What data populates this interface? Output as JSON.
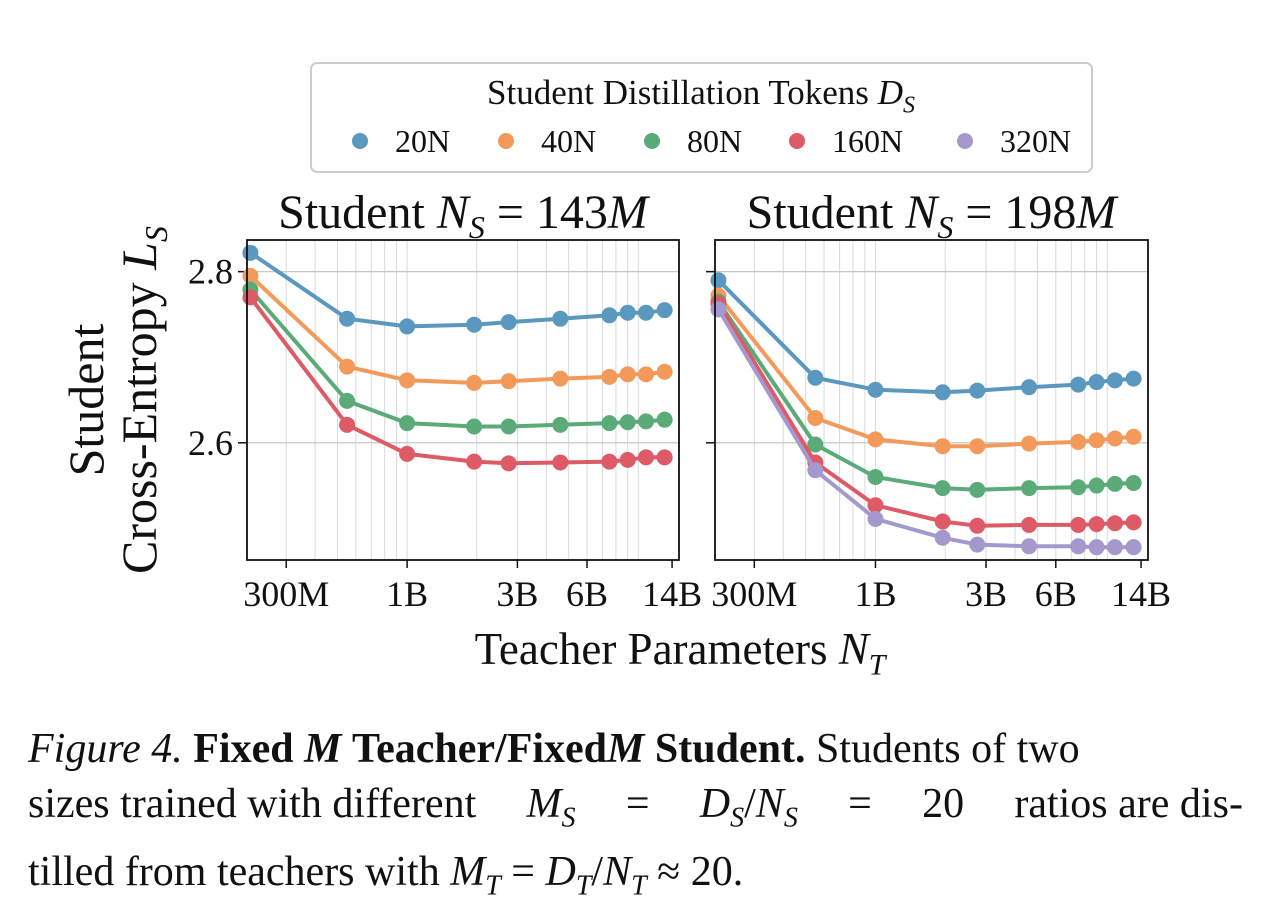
{
  "chart_data": {
    "type": "line",
    "shared": {
      "xlabel": "Teacher Parameters",
      "xlabel_symbol": "N",
      "xlabel_sub": "T",
      "ylabel_line1": "Student",
      "ylabel_line2": "Cross-Entropy",
      "ylabel_symbol": "L",
      "ylabel_sub": "S",
      "x_scale": "log",
      "x_ticks": [
        {
          "value": 300000000.0,
          "label": "300M"
        },
        {
          "value": 1000000000.0,
          "label": "1B"
        },
        {
          "value": 3000000000.0,
          "label": "3B"
        },
        {
          "value": 6000000000.0,
          "label": "6B"
        },
        {
          "value": 14000000000.0,
          "label": "14B"
        }
      ],
      "xlim": [
        203000000.0,
        15000000000.0
      ],
      "ylim": [
        2.463,
        2.837
      ],
      "y_ticks": [
        {
          "value": 2.6,
          "label": "2.6"
        },
        {
          "value": 2.8,
          "label": "2.8"
        }
      ],
      "grid": true,
      "legend": {
        "title": "Student Distillation Tokens",
        "title_symbol": "D",
        "title_sub": "S",
        "placement": "top-center",
        "entries": [
          {
            "label": "20N",
            "color": "#5a98bf"
          },
          {
            "label": "40N",
            "color": "#f39a5b"
          },
          {
            "label": "80N",
            "color": "#5aab78"
          },
          {
            "label": "160N",
            "color": "#dd5a66"
          },
          {
            "label": "320N",
            "color": "#a499cc"
          }
        ]
      },
      "x": [
        210000000.0,
        550000000.0,
        1000000000.0,
        1950000000.0,
        2750000000.0,
        4600000000.0,
        7500000000.0,
        9000000000.0,
        10800000000.0,
        13000000000.0
      ]
    },
    "panels": [
      {
        "title": "Student",
        "title_symbol": "N",
        "title_sub": "S",
        "title_value": "= 143",
        "title_unit": "M",
        "series": [
          {
            "name": "20N",
            "color": "#5a98bf",
            "values": [
              2.822,
              2.745,
              2.736,
              2.738,
              2.741,
              2.745,
              2.749,
              2.752,
              2.752,
              2.755
            ]
          },
          {
            "name": "40N",
            "color": "#f39a5b",
            "values": [
              2.795,
              2.689,
              2.673,
              2.67,
              2.672,
              2.675,
              2.677,
              2.68,
              2.68,
              2.683
            ]
          },
          {
            "name": "80N",
            "color": "#5aab78",
            "values": [
              2.779,
              2.649,
              2.623,
              2.619,
              2.619,
              2.621,
              2.623,
              2.624,
              2.625,
              2.627
            ]
          },
          {
            "name": "160N",
            "color": "#dd5a66",
            "values": [
              2.77,
              2.621,
              2.587,
              2.578,
              2.576,
              2.577,
              2.578,
              2.58,
              2.583,
              2.583
            ]
          }
        ]
      },
      {
        "title": "Student",
        "title_symbol": "N",
        "title_sub": "S",
        "title_value": "= 198",
        "title_unit": "M",
        "series": [
          {
            "name": "20N",
            "color": "#5a98bf",
            "values": [
              2.79,
              2.676,
              2.662,
              2.659,
              2.661,
              2.665,
              2.668,
              2.671,
              2.673,
              2.675
            ]
          },
          {
            "name": "40N",
            "color": "#f39a5b",
            "values": [
              2.772,
              2.629,
              2.604,
              2.596,
              2.596,
              2.599,
              2.601,
              2.603,
              2.605,
              2.607
            ]
          },
          {
            "name": "80N",
            "color": "#5aab78",
            "values": [
              2.765,
              2.598,
              2.56,
              2.547,
              2.545,
              2.547,
              2.548,
              2.55,
              2.552,
              2.553
            ]
          },
          {
            "name": "160N",
            "color": "#dd5a66",
            "values": [
              2.763,
              2.577,
              2.527,
              2.508,
              2.503,
              2.504,
              2.504,
              2.505,
              2.506,
              2.507
            ]
          },
          {
            "name": "320N",
            "color": "#a499cc",
            "values": [
              2.756,
              2.568,
              2.511,
              2.489,
              2.481,
              2.479,
              2.479,
              2.478,
              2.478,
              2.478
            ]
          }
        ]
      }
    ]
  },
  "caption": {
    "figure_label": "Figure 4.",
    "bold_1": "Fixed",
    "bold_M1": "M",
    "bold_2": "Teacher/Fixed",
    "bold_M2": "M",
    "bold_3": "Student.",
    "text_1": "Students of two",
    "text_2": "sizes trained with different",
    "math_1": "M",
    "math_1_sub": "S",
    "eq_1": "=",
    "math_2": "D",
    "math_2_sub": "S",
    "slash_1": "/",
    "math_3": "N",
    "math_3_sub": "S",
    "eq_2": "=",
    "num_1": "20",
    "text_3": "ratios are dis-",
    "text_4": "tilled from teachers with",
    "math_4": "M",
    "math_4_sub": "T",
    "eq_3": "=",
    "math_5": "D",
    "math_5_sub": "T",
    "slash_2": "/",
    "math_6": "N",
    "math_6_sub": "T",
    "approx": "≈",
    "num_2": "20."
  }
}
